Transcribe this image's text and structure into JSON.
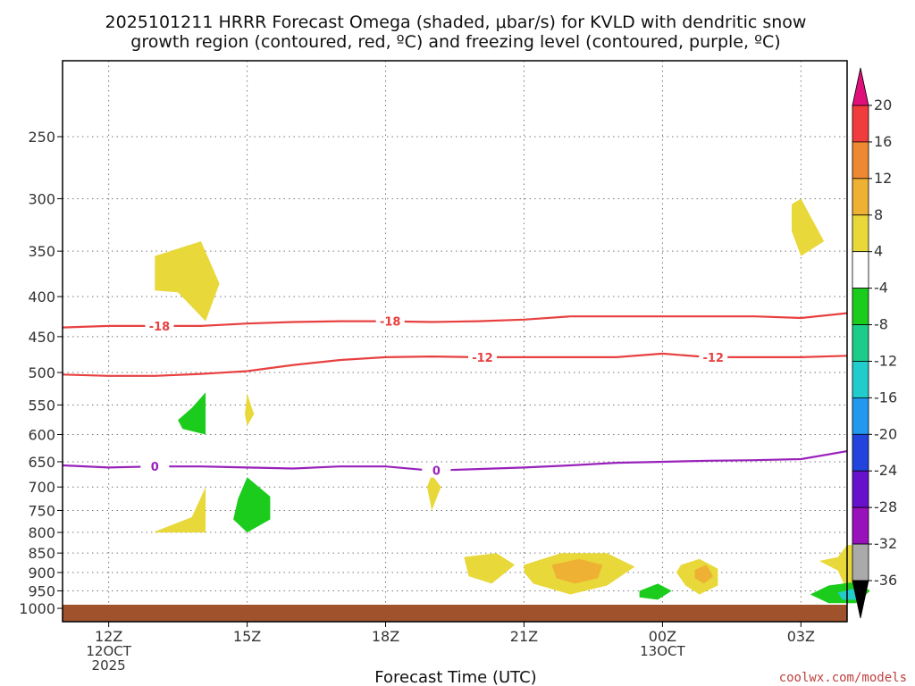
{
  "chart_data": {
    "type": "contour",
    "title_line1": "2025101211 HRRR Forecast Omega (shaded, μbar/s) for KVLD with dendritic snow",
    "title_line2": "growth region (contoured, red, ºC) and freezing level (contoured, purple, ºC)",
    "xlabel": "Forecast Time (UTC)",
    "ylabel": "",
    "credit": "coolwx.com/models",
    "x_range_hours": [
      -1,
      16
    ],
    "y_range_hPa": [
      200,
      1040
    ],
    "y_ticks": [
      250,
      300,
      350,
      400,
      450,
      500,
      550,
      600,
      650,
      700,
      750,
      800,
      850,
      900,
      950,
      1000
    ],
    "x_ticks": [
      {
        "hour": 0,
        "lines": [
          "12Z",
          "12OCT",
          "2025"
        ]
      },
      {
        "hour": 3,
        "lines": [
          "15Z"
        ]
      },
      {
        "hour": 6,
        "lines": [
          "18Z"
        ]
      },
      {
        "hour": 9,
        "lines": [
          "21Z"
        ]
      },
      {
        "hour": 12,
        "lines": [
          "00Z",
          "13OCT"
        ]
      },
      {
        "hour": 15,
        "lines": [
          "03Z"
        ]
      }
    ],
    "colorbar": {
      "labels": [
        "20",
        "16",
        "12",
        "8",
        "4",
        "-4",
        "-8",
        "-12",
        "-16",
        "-20",
        "-24",
        "-28",
        "-32",
        "-36"
      ],
      "bands": [
        {
          "lo": 16,
          "hi": 20,
          "color": "#f03c3c"
        },
        {
          "lo": 12,
          "hi": 16,
          "color": "#ee8833"
        },
        {
          "lo": 8,
          "hi": 12,
          "color": "#eeb133"
        },
        {
          "lo": 4,
          "hi": 8,
          "color": "#e8d83a"
        },
        {
          "lo": -4,
          "hi": 4,
          "color": "#ffffff"
        },
        {
          "lo": -8,
          "hi": -4,
          "color": "#1ccc1c"
        },
        {
          "lo": -12,
          "hi": -8,
          "color": "#1ccc88"
        },
        {
          "lo": -16,
          "hi": -12,
          "color": "#22cccc"
        },
        {
          "lo": -20,
          "hi": -16,
          "color": "#2299ee"
        },
        {
          "lo": -24,
          "hi": -20,
          "color": "#2244dd"
        },
        {
          "lo": -28,
          "hi": -24,
          "color": "#6611cc"
        },
        {
          "lo": -32,
          "hi": -28,
          "color": "#9911bb"
        },
        {
          "lo": -36,
          "hi": -32,
          "color": "#aaaaaa"
        }
      ],
      "top_arrow_color": "#e0107a",
      "bottom_arrow_color": "#000000"
    },
    "ground_color": "#a0522d",
    "ground_pressure_hPa": 1000,
    "isotherms": [
      {
        "label": "-18",
        "color": "#e84040",
        "points": [
          [
            -1,
            438
          ],
          [
            0,
            436
          ],
          [
            1,
            436
          ],
          [
            2,
            436
          ],
          [
            3,
            433
          ],
          [
            4,
            431
          ],
          [
            5,
            430
          ],
          [
            6,
            430
          ],
          [
            7,
            431
          ],
          [
            8,
            430
          ],
          [
            9,
            428
          ],
          [
            10,
            424
          ],
          [
            11,
            424
          ],
          [
            12,
            424
          ],
          [
            13,
            424
          ],
          [
            14,
            424
          ],
          [
            15,
            426
          ],
          [
            16,
            420
          ]
        ],
        "label_hours": [
          1.1,
          6.1
        ]
      },
      {
        "label": "-12",
        "color": "#e84040",
        "points": [
          [
            -1,
            503
          ],
          [
            0,
            505
          ],
          [
            1,
            505
          ],
          [
            2,
            502
          ],
          [
            3,
            498
          ],
          [
            4,
            489
          ],
          [
            5,
            482
          ],
          [
            6,
            478
          ],
          [
            7,
            477
          ],
          [
            8,
            478
          ],
          [
            9,
            478
          ],
          [
            10,
            478
          ],
          [
            11,
            478
          ],
          [
            12,
            473
          ],
          [
            13,
            478
          ],
          [
            14,
            478
          ],
          [
            15,
            478
          ],
          [
            16,
            476
          ]
        ],
        "label_hours": [
          8.1,
          13.1
        ]
      },
      {
        "label": "0",
        "color": "#9922bb",
        "points": [
          [
            -1,
            657
          ],
          [
            0,
            661
          ],
          [
            1,
            659
          ],
          [
            2,
            659
          ],
          [
            3,
            661
          ],
          [
            4,
            663
          ],
          [
            5,
            659
          ],
          [
            6,
            659
          ],
          [
            7,
            667
          ],
          [
            8,
            664
          ],
          [
            9,
            661
          ],
          [
            10,
            657
          ],
          [
            11,
            652
          ],
          [
            12,
            650
          ],
          [
            13,
            648
          ],
          [
            14,
            647
          ],
          [
            15,
            645
          ],
          [
            16,
            630
          ]
        ],
        "label_hours": [
          1.0,
          7.1
        ]
      }
    ],
    "omega_regions": [
      {
        "value": 4,
        "points": [
          [
            1,
            355
          ],
          [
            2,
            340
          ],
          [
            2.4,
            385
          ],
          [
            2.1,
            430
          ],
          [
            1.5,
            395
          ],
          [
            1,
            393
          ]
        ]
      },
      {
        "value": 4,
        "points": [
          [
            1,
            798
          ],
          [
            1.8,
            765
          ],
          [
            2.1,
            700
          ],
          [
            2.1,
            800
          ],
          [
            1,
            800
          ]
        ]
      },
      {
        "value": 4,
        "points": [
          [
            3,
            532
          ],
          [
            3.15,
            565
          ],
          [
            3,
            585
          ],
          [
            2.95,
            565
          ]
        ]
      },
      {
        "value": 4,
        "points": [
          [
            7,
            675
          ],
          [
            7.2,
            700
          ],
          [
            7,
            750
          ],
          [
            6.9,
            700
          ]
        ]
      },
      {
        "value": 4,
        "points": [
          [
            7.7,
            860
          ],
          [
            8.4,
            850
          ],
          [
            8.8,
            880
          ],
          [
            8.3,
            930
          ],
          [
            7.8,
            910
          ]
        ]
      },
      {
        "value": 4,
        "points": [
          [
            9,
            880
          ],
          [
            9.8,
            850
          ],
          [
            10.8,
            850
          ],
          [
            11.4,
            885
          ],
          [
            10.8,
            935
          ],
          [
            10,
            960
          ],
          [
            9.2,
            930
          ],
          [
            9,
            900
          ]
        ]
      },
      {
        "value": 8,
        "points": [
          [
            9.6,
            880
          ],
          [
            10.2,
            865
          ],
          [
            10.7,
            880
          ],
          [
            10.6,
            915
          ],
          [
            10.1,
            930
          ],
          [
            9.7,
            915
          ]
        ]
      },
      {
        "value": 4,
        "points": [
          [
            12.4,
            880
          ],
          [
            12.8,
            865
          ],
          [
            13.2,
            890
          ],
          [
            13.2,
            935
          ],
          [
            12.8,
            960
          ],
          [
            12.5,
            935
          ],
          [
            12.3,
            900
          ]
        ]
      },
      {
        "value": 8,
        "points": [
          [
            12.7,
            893
          ],
          [
            12.95,
            880
          ],
          [
            13.1,
            910
          ],
          [
            12.9,
            930
          ],
          [
            12.7,
            915
          ]
        ]
      },
      {
        "value": 4,
        "points": [
          [
            14.8,
            305
          ],
          [
            15,
            300
          ],
          [
            15.5,
            340
          ],
          [
            15,
            355
          ],
          [
            14.8,
            330
          ]
        ]
      },
      {
        "value": 4,
        "points": [
          [
            15.8,
            860
          ],
          [
            16,
            830
          ],
          [
            16.2,
            830
          ],
          [
            16.2,
            960
          ],
          [
            16,
            950
          ],
          [
            15.8,
            895
          ],
          [
            15.4,
            870
          ]
        ]
      },
      {
        "value": -4,
        "points": [
          [
            1.8,
            555
          ],
          [
            2.1,
            530
          ],
          [
            2.1,
            600
          ],
          [
            1.6,
            590
          ],
          [
            1.5,
            575
          ]
        ]
      },
      {
        "value": -4,
        "points": [
          [
            2.8,
            725
          ],
          [
            3,
            680
          ],
          [
            3.5,
            720
          ],
          [
            3.5,
            770
          ],
          [
            3,
            800
          ],
          [
            2.7,
            770
          ]
        ]
      },
      {
        "value": -4,
        "points": [
          [
            11.5,
            950
          ],
          [
            11.9,
            930
          ],
          [
            12.2,
            950
          ],
          [
            11.9,
            975
          ],
          [
            11.5,
            968
          ]
        ]
      },
      {
        "value": -4,
        "points": [
          [
            15.2,
            960
          ],
          [
            15.6,
            935
          ],
          [
            16.2,
            925
          ],
          [
            16.5,
            950
          ],
          [
            16.2,
            985
          ],
          [
            15.6,
            985
          ]
        ]
      },
      {
        "value": -12,
        "points": [
          [
            15.8,
            955
          ],
          [
            16.1,
            945
          ],
          [
            16.4,
            955
          ],
          [
            16.2,
            975
          ],
          [
            15.9,
            975
          ]
        ]
      }
    ]
  }
}
